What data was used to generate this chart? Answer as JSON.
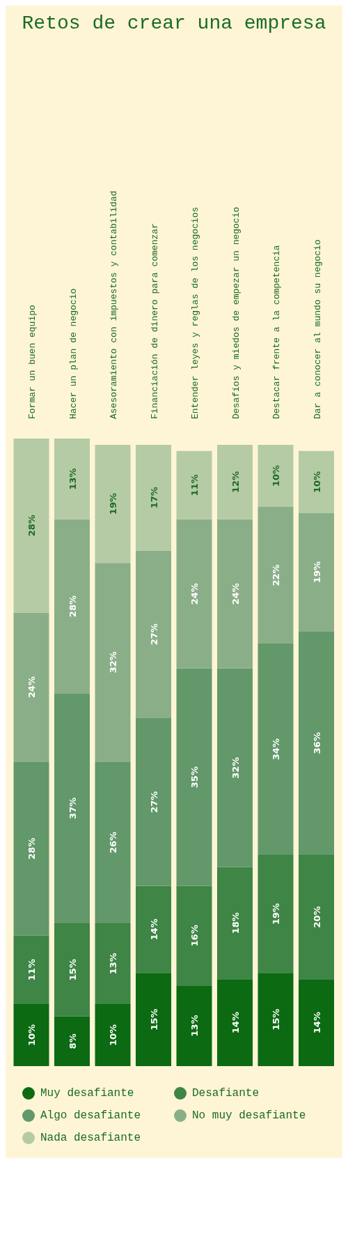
{
  "chart_data": {
    "type": "bar",
    "title": "Retos de crear una empresa",
    "stacked": true,
    "legend": "bottom",
    "categories": [
      "Formar un buen equipo",
      "Hacer un plan de negocio",
      "Asesoramiento con impuestos y contabilidad",
      "Financiación de dinero para comenzar",
      "Entender leyes y reglas de los negocios",
      "Desafíos y miedos de empezar un negocio",
      "Destacar frente a la competencia",
      "Dar a conocer al mundo su negocio"
    ],
    "series": [
      {
        "name": "Muy desafiante",
        "color": "#0b6a12",
        "values": [
          10,
          8,
          10,
          15,
          13,
          14,
          15,
          14
        ],
        "value_labels": [
          "10%",
          "8%",
          "10%",
          "15%",
          "13%",
          "14%",
          "15%",
          "14%"
        ]
      },
      {
        "name": "Desafiante",
        "color": "#3e8546",
        "values": [
          11,
          15,
          13,
          14,
          16,
          18,
          19,
          20
        ],
        "value_labels": [
          "11%",
          "15%",
          "13%",
          "14%",
          "16%",
          "18%",
          "19%",
          "20%"
        ]
      },
      {
        "name": "Algo desafiante",
        "color": "#62986a",
        "values": [
          28,
          37,
          26,
          27,
          35,
          32,
          34,
          36
        ],
        "value_labels": [
          "28%",
          "37%",
          "26%",
          "27%",
          "35%",
          "32%",
          "34%",
          "36%"
        ]
      },
      {
        "name": "No muy desafiante",
        "color": "#8aaf88",
        "values": [
          24,
          28,
          32,
          27,
          24,
          24,
          22,
          19
        ],
        "value_labels": [
          "24%",
          "28%",
          "32%",
          "27%",
          "24%",
          "24%",
          "22%",
          "19%"
        ]
      },
      {
        "name": "Nada desafiante",
        "color": "#b5cba5",
        "values": [
          28,
          13,
          19,
          17,
          11,
          12,
          10,
          10
        ],
        "value_labels": [
          "28%",
          "13%",
          "19%",
          "17%",
          "11%",
          "12%",
          "10%",
          "10%"
        ]
      }
    ]
  }
}
